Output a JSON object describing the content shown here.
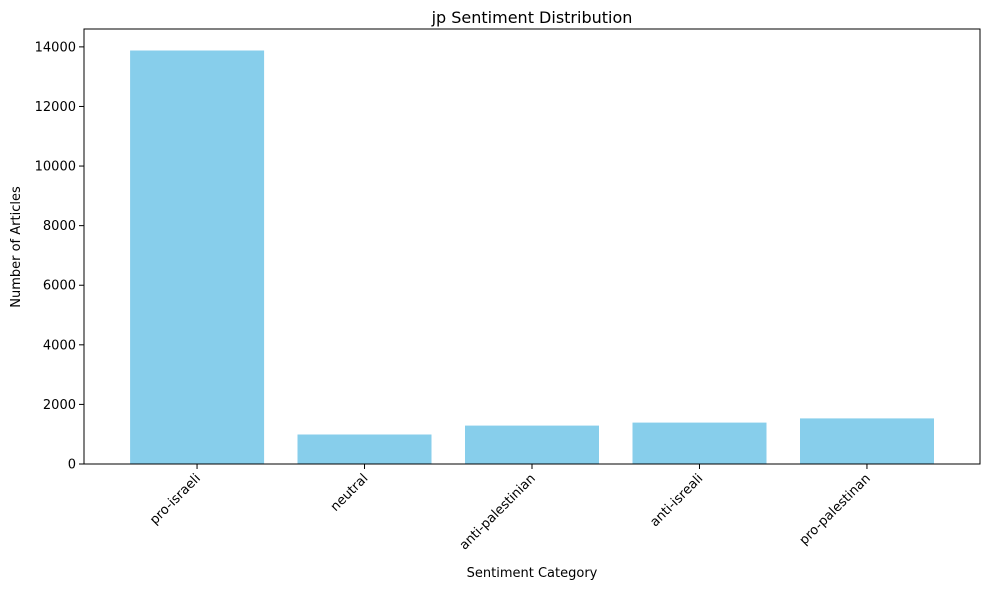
{
  "chart_data": {
    "type": "bar",
    "title": "jp Sentiment Distribution",
    "xlabel": "Sentiment Category",
    "ylabel": "Number of Articles",
    "categories": [
      "pro-israeli",
      "neutral",
      "anti-palestinian",
      "anti-isreali",
      "pro-palestinan"
    ],
    "values": [
      13880,
      990,
      1290,
      1390,
      1530
    ],
    "ylim": [
      0,
      14600
    ],
    "yticks": [
      0,
      2000,
      4000,
      6000,
      8000,
      10000,
      12000,
      14000
    ],
    "grid": false,
    "bar_color": "#87ceeb"
  }
}
